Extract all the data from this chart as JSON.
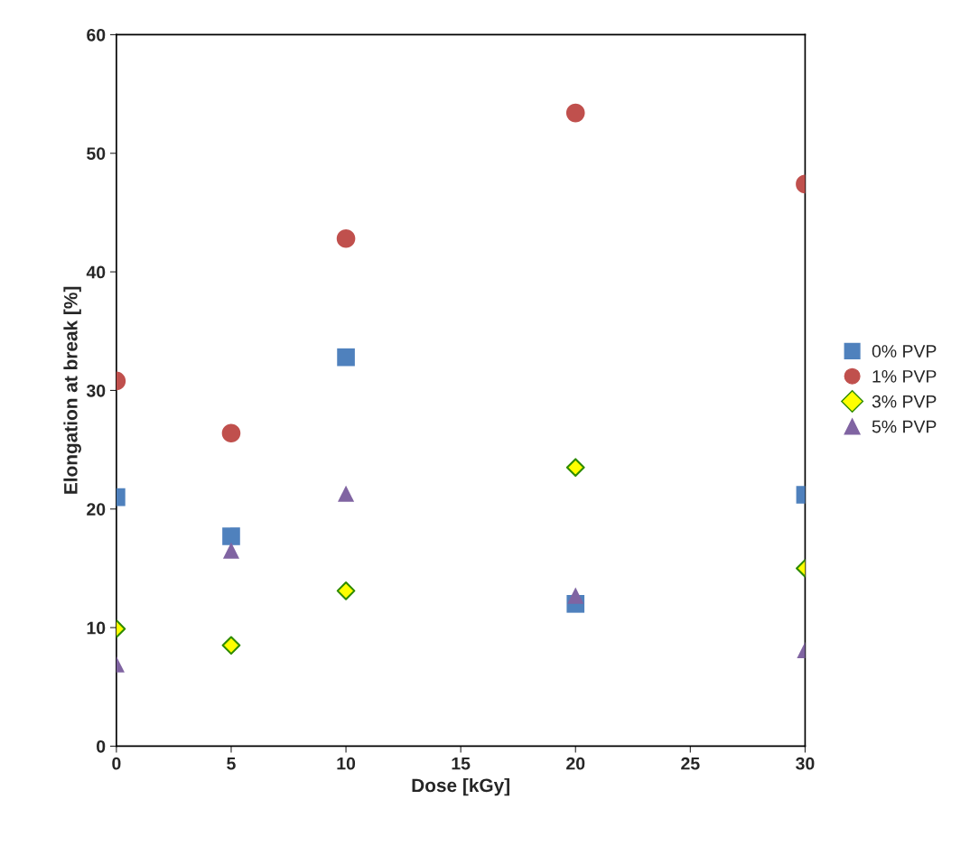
{
  "chart_data": {
    "type": "scatter",
    "xlabel": "Dose [kGy]",
    "ylabel": "Elongation at break [%]",
    "x": [
      0,
      5,
      10,
      20,
      30
    ],
    "series": [
      {
        "name": "0% PVP",
        "color": "#4f81bd",
        "marker": "square",
        "values": [
          21.0,
          17.7,
          32.8,
          12.0,
          21.2
        ]
      },
      {
        "name": "1% PVP",
        "color": "#c0504d",
        "marker": "circle",
        "values": [
          30.8,
          26.4,
          42.8,
          53.4,
          47.4
        ]
      },
      {
        "name": "3% PVP",
        "color": "#ffff00",
        "marker": "diamond",
        "values": [
          9.9,
          8.5,
          13.1,
          23.5,
          15.0
        ]
      },
      {
        "name": "5% PVP",
        "color": "#8064a2",
        "marker": "triangle",
        "values": [
          6.9,
          16.5,
          21.3,
          12.7,
          8.1
        ]
      }
    ],
    "xlim": [
      0,
      30
    ],
    "xticks": [
      0,
      5,
      10,
      15,
      20,
      25,
      30
    ],
    "ylim": [
      0,
      60
    ],
    "yticks": [
      0,
      10,
      20,
      30,
      40,
      50,
      60
    ],
    "grid": false,
    "legend": "right"
  }
}
